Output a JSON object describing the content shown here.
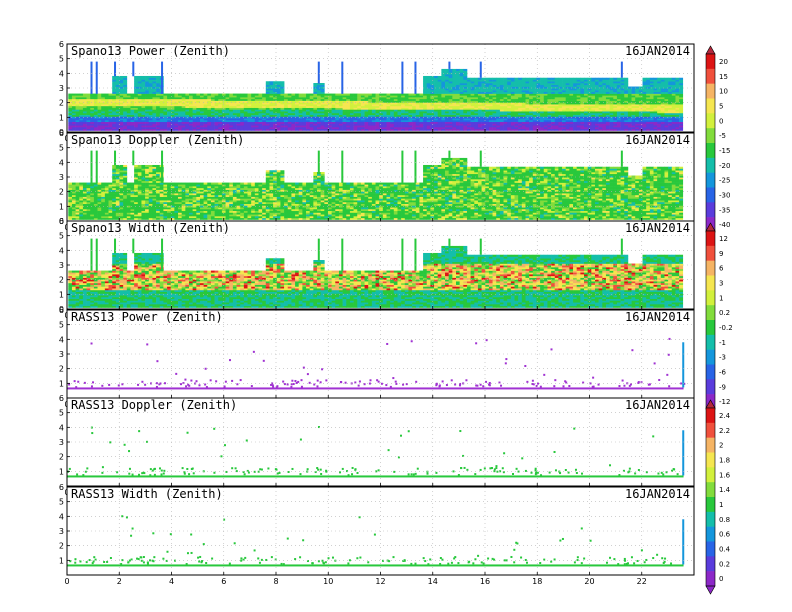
{
  "chart_data": [
    {
      "type": "heatmap",
      "title": "Spano13 Power (Zenith)",
      "date": "16JAN2014",
      "kind": "spano",
      "variant": "power",
      "xlim": [
        0,
        24
      ],
      "ylim": [
        0,
        6
      ],
      "x_ticks": [
        0,
        2,
        4,
        6,
        8,
        10,
        12,
        14,
        16,
        18,
        20,
        22
      ],
      "y_ticks": [
        0,
        1,
        2,
        3,
        4,
        5,
        6
      ],
      "grid": true,
      "colorbar": [
        "20",
        "15",
        "10",
        "5",
        "0",
        "-5",
        "-15",
        "-20",
        "-25",
        "-30",
        "-35",
        "-40"
      ]
    },
    {
      "type": "heatmap",
      "title": "Spano13 Doppler (Zenith)",
      "date": "16JAN2014",
      "kind": "spano",
      "variant": "doppler",
      "xlim": [
        0,
        24
      ],
      "ylim": [
        0,
        6
      ],
      "x_ticks": [
        0,
        2,
        4,
        6,
        8,
        10,
        12,
        14,
        16,
        18,
        20,
        22
      ],
      "y_ticks": [
        0,
        1,
        2,
        3,
        4,
        5,
        6
      ],
      "grid": true,
      "colorbar": null
    },
    {
      "type": "heatmap",
      "title": "Spano13 Width (Zenith)",
      "date": "16JAN2014",
      "kind": "spano",
      "variant": "width",
      "xlim": [
        0,
        24
      ],
      "ylim": [
        0,
        6
      ],
      "x_ticks": [
        0,
        2,
        4,
        6,
        8,
        10,
        12,
        14,
        16,
        18,
        20,
        22
      ],
      "y_ticks": [
        0,
        1,
        2,
        3,
        4,
        5,
        6
      ],
      "grid": true,
      "colorbar": [
        "12",
        "9",
        "6",
        "3",
        "1",
        "0.2",
        "-0.2",
        "-1",
        "-3",
        "-6",
        "-9",
        "-12"
      ]
    },
    {
      "type": "heatmap",
      "title": "RASS13 Power (Zenith)",
      "date": "16JAN2014",
      "kind": "rass",
      "variant": "power",
      "xlim": [
        0,
        24
      ],
      "ylim": [
        0,
        6
      ],
      "x_ticks": [
        0,
        2,
        4,
        6,
        8,
        10,
        12,
        14,
        16,
        18,
        20,
        22
      ],
      "y_ticks": [
        1,
        2,
        3,
        4,
        5,
        6
      ],
      "grid": true,
      "colorbar": null
    },
    {
      "type": "heatmap",
      "title": "RASS13 Doppler (Zenith)",
      "date": "16JAN2014",
      "kind": "rass",
      "variant": "doppler",
      "xlim": [
        0,
        24
      ],
      "ylim": [
        0,
        6
      ],
      "x_ticks": [
        0,
        2,
        4,
        6,
        8,
        10,
        12,
        14,
        16,
        18,
        20,
        22
      ],
      "y_ticks": [
        1,
        2,
        3,
        4,
        5,
        6
      ],
      "grid": true,
      "colorbar": [
        "2.4",
        "2.2",
        "2",
        "1.8",
        "1.6",
        "1.4",
        "1",
        "0.8",
        "0.6",
        "0.4",
        "0.2",
        "0"
      ]
    },
    {
      "type": "heatmap",
      "title": "RASS13 Width (Zenith)",
      "date": "16JAN2014",
      "kind": "rass",
      "variant": "width",
      "xlim": [
        0,
        24
      ],
      "ylim": [
        0,
        6
      ],
      "x_ticks": [
        0,
        2,
        4,
        6,
        8,
        10,
        12,
        14,
        16,
        18,
        20,
        22
      ],
      "y_ticks": [
        1,
        2,
        3,
        4,
        5,
        6
      ],
      "grid": true,
      "colorbar": null
    }
  ],
  "colors": {
    "rainbow": [
      "#dc1414",
      "#f0503c",
      "#f5b464",
      "#f5e650",
      "#d2f03c",
      "#82dc3c",
      "#28c83c",
      "#14beaa",
      "#1496dc",
      "#2864e6",
      "#5a3cdc",
      "#8c28c8"
    ],
    "rass_point": "#a032d2"
  }
}
